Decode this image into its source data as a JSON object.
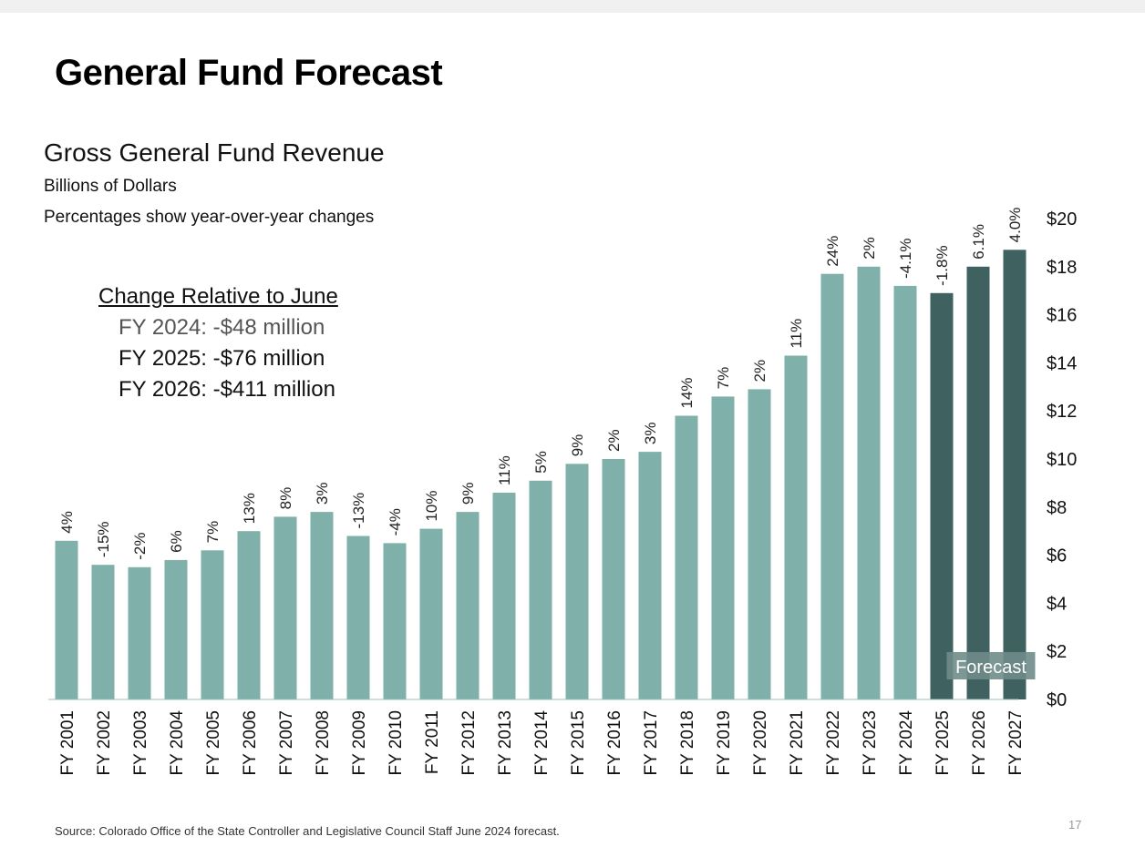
{
  "page": {
    "title": "General Fund Forecast",
    "subtitle": "Gross General Fund Revenue",
    "unit_note": "Billions of Dollars",
    "pct_note": "Percentages show year-over-year changes",
    "change_box": {
      "heading": "Change Relative to June",
      "lines": [
        "FY 2024: -$48 million",
        "FY 2025: -$76 million",
        "FY 2026: -$411 million"
      ]
    },
    "forecast_label": "Forecast",
    "source": "Source: Colorado Office of the State Controller and Legislative Council Staff June 2024 forecast.",
    "page_number": "17"
  },
  "colors": {
    "historical": "#7fb0aa",
    "forecast": "#3f615f"
  },
  "chart_data": {
    "type": "bar",
    "categories": [
      "FY 2001",
      "FY 2002",
      "FY 2003",
      "FY 2004",
      "FY 2005",
      "FY 2006",
      "FY 2007",
      "FY 2008",
      "FY 2009",
      "FY 2010",
      "FY 2011",
      "FY 2012",
      "FY 2013",
      "FY 2014",
      "FY 2015",
      "FY 2016",
      "FY 2017",
      "FY 2018",
      "FY 2019",
      "FY 2020",
      "FY 2021",
      "FY 2022",
      "FY 2023",
      "FY 2024",
      "FY 2025",
      "FY 2026",
      "FY 2027"
    ],
    "values": [
      6.6,
      5.6,
      5.5,
      5.8,
      6.2,
      7.0,
      7.6,
      7.8,
      6.8,
      6.5,
      7.1,
      7.8,
      8.6,
      9.1,
      9.8,
      10.0,
      10.3,
      11.8,
      12.6,
      12.9,
      14.3,
      17.7,
      18.0,
      17.2,
      16.9,
      18.0,
      18.7
    ],
    "labels": [
      "4%",
      "-15%",
      "-2%",
      "6%",
      "7%",
      "13%",
      "8%",
      "3%",
      "-13%",
      "-4%",
      "10%",
      "9%",
      "11%",
      "5%",
      "9%",
      "2%",
      "3%",
      "14%",
      "7%",
      "2%",
      "11%",
      "24%",
      "2%",
      "-4.1%",
      "-1.8%",
      "6.1%",
      "4.0%"
    ],
    "forecast_start_index": 24,
    "ylim": [
      0,
      20
    ],
    "yticks": [
      "$0",
      "$2",
      "$4",
      "$6",
      "$8",
      "$10",
      "$12",
      "$14",
      "$16",
      "$18",
      "$20"
    ],
    "ytick_values": [
      0,
      2,
      4,
      6,
      8,
      10,
      12,
      14,
      16,
      18,
      20
    ]
  }
}
